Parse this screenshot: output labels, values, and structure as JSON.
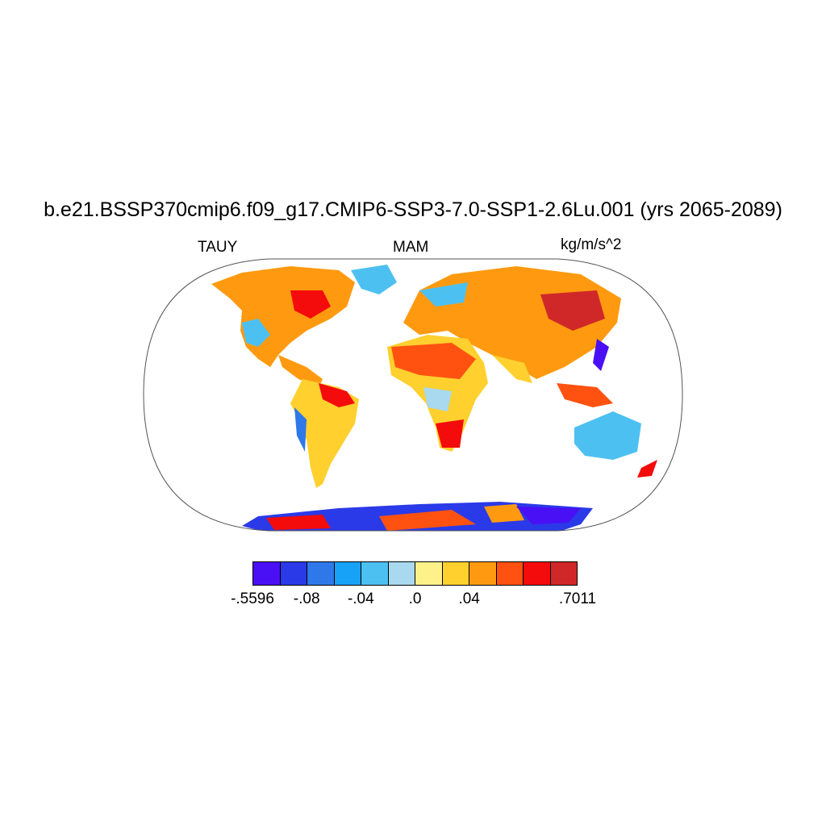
{
  "title": "b.e21.BSSP370cmip6.f09_g17.CMIP6-SSP3-7.0-SSP1-2.6Lu.001 (yrs 2065-2089)",
  "left_label": "TAUY",
  "center_label": "MAM",
  "right_label": "kg/m/s^2",
  "colorbar": {
    "colors": [
      "#4a10f5",
      "#2a3ae8",
      "#2f78ea",
      "#17a2f8",
      "#4dc0f2",
      "#a9d9ee",
      "#fff18a",
      "#ffd02e",
      "#ff9a10",
      "#ff5210",
      "#f40b0b",
      "#d02828"
    ],
    "labels": [
      {
        "text": "-.5596",
        "index": 0
      },
      {
        "text": "-.08",
        "index": 2
      },
      {
        "text": "-.04",
        "index": 4
      },
      {
        "text": ".0",
        "index": 6
      },
      {
        "text": ".04",
        "index": 8
      },
      {
        "text": ".7011",
        "index": 12
      }
    ]
  }
}
